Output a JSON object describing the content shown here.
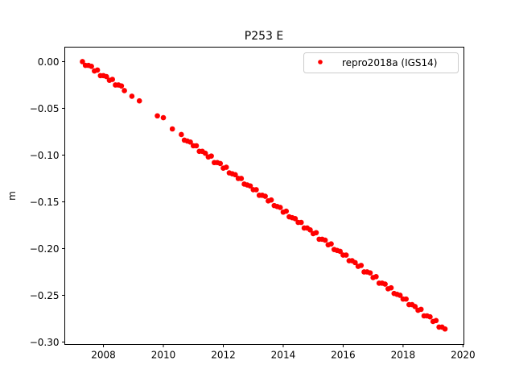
{
  "chart_data": {
    "type": "scatter",
    "title": "P253 E",
    "xlabel": "",
    "ylabel": "m",
    "xlim": [
      2006.71,
      2020.03
    ],
    "ylim": [
      -0.3026,
      0.0155
    ],
    "xticks": [
      2008,
      2010,
      2012,
      2014,
      2016,
      2018,
      2020
    ],
    "xtick_labels": [
      "2008",
      "2010",
      "2012",
      "2014",
      "2016",
      "2018",
      "2020"
    ],
    "yticks": [
      0.0,
      -0.05,
      -0.1,
      -0.15,
      -0.2,
      -0.25,
      -0.3
    ],
    "ytick_labels": [
      "0.00",
      "−0.05",
      "−0.10",
      "−0.15",
      "−0.20",
      "−0.25",
      "−0.30"
    ],
    "grid": false,
    "legend_position": "top-right",
    "series": [
      {
        "name": "repro2018a (IGS14)",
        "color": "#ff0000",
        "x": [
          2007.3,
          2007.4,
          2007.5,
          2007.6,
          2007.7,
          2007.8,
          2007.9,
          2008.0,
          2008.1,
          2008.2,
          2008.3,
          2008.4,
          2008.5,
          2008.6,
          2008.7,
          2008.95,
          2009.2,
          2009.8,
          2010.0,
          2010.3,
          2010.6,
          2010.7,
          2010.8,
          2010.9,
          2011.0,
          2011.1,
          2011.2,
          2011.3,
          2011.4,
          2011.5,
          2011.6,
          2011.7,
          2011.8,
          2011.9,
          2012.0,
          2012.1,
          2012.2,
          2012.3,
          2012.4,
          2012.5,
          2012.6,
          2012.7,
          2012.8,
          2012.9,
          2013.0,
          2013.1,
          2013.2,
          2013.3,
          2013.4,
          2013.5,
          2013.6,
          2013.7,
          2013.8,
          2013.9,
          2014.0,
          2014.1,
          2014.2,
          2014.3,
          2014.4,
          2014.5,
          2014.6,
          2014.7,
          2014.8,
          2014.9,
          2015.0,
          2015.1,
          2015.2,
          2015.3,
          2015.4,
          2015.5,
          2015.6,
          2015.7,
          2015.8,
          2015.9,
          2016.0,
          2016.1,
          2016.2,
          2016.3,
          2016.4,
          2016.5,
          2016.6,
          2016.7,
          2016.8,
          2016.9,
          2017.0,
          2017.1,
          2017.2,
          2017.3,
          2017.4,
          2017.5,
          2017.6,
          2017.7,
          2017.8,
          2017.9,
          2018.0,
          2018.1,
          2018.2,
          2018.3,
          2018.4,
          2018.5,
          2018.6,
          2018.7,
          2018.8,
          2018.9,
          2019.0,
          2019.1,
          2019.2,
          2019.3,
          2019.4
        ],
        "y": [
          0.0,
          -0.004,
          -0.004,
          -0.005,
          -0.01,
          -0.009,
          -0.015,
          -0.015,
          -0.016,
          -0.02,
          -0.019,
          -0.025,
          -0.025,
          -0.026,
          -0.031,
          -0.037,
          -0.042,
          -0.058,
          -0.06,
          -0.072,
          -0.078,
          -0.084,
          -0.085,
          -0.086,
          -0.09,
          -0.09,
          -0.096,
          -0.096,
          -0.098,
          -0.102,
          -0.101,
          -0.108,
          -0.108,
          -0.109,
          -0.114,
          -0.113,
          -0.119,
          -0.12,
          -0.121,
          -0.125,
          -0.125,
          -0.131,
          -0.132,
          -0.133,
          -0.137,
          -0.137,
          -0.143,
          -0.143,
          -0.144,
          -0.149,
          -0.148,
          -0.154,
          -0.155,
          -0.156,
          -0.161,
          -0.16,
          -0.166,
          -0.167,
          -0.168,
          -0.172,
          -0.172,
          -0.178,
          -0.178,
          -0.18,
          -0.184,
          -0.183,
          -0.19,
          -0.19,
          -0.191,
          -0.196,
          -0.195,
          -0.201,
          -0.202,
          -0.203,
          -0.207,
          -0.207,
          -0.213,
          -0.213,
          -0.215,
          -0.219,
          -0.218,
          -0.225,
          -0.225,
          -0.226,
          -0.231,
          -0.23,
          -0.237,
          -0.237,
          -0.238,
          -0.243,
          -0.242,
          -0.248,
          -0.249,
          -0.25,
          -0.254,
          -0.254,
          -0.26,
          -0.26,
          -0.262,
          -0.266,
          -0.265,
          -0.272,
          -0.272,
          -0.273,
          -0.278,
          -0.277,
          -0.284,
          -0.284,
          -0.286
        ]
      }
    ]
  }
}
